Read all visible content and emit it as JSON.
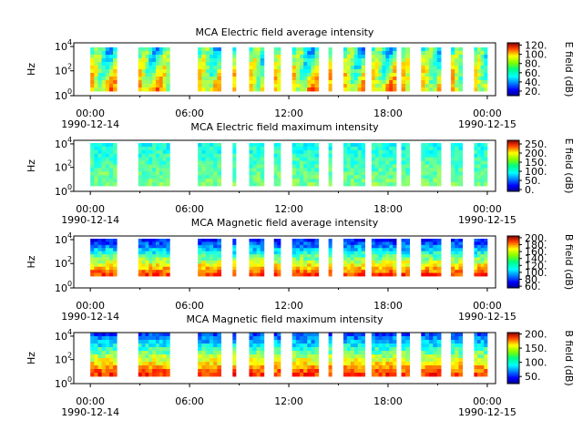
{
  "figure": {
    "instrument": "MCA",
    "x_ticks": [
      "00:00",
      "06:00",
      "12:00",
      "18:00",
      "00:00"
    ],
    "x_tick_hours": [
      0,
      6,
      12,
      18,
      24
    ],
    "date_start": "1990-12-14",
    "date_end": "1990-12-15"
  },
  "chart_data": [
    {
      "type": "heatmap",
      "title": "MCA  Electric field average intensity",
      "ylabel": "Hz",
      "y_scale": "log",
      "yticks": [
        "10",
        "10",
        "10"
      ],
      "ytick_exps": [
        "0",
        "2",
        "4"
      ],
      "colorbar_label": "E field (dB)",
      "colorbar_ticks": [
        "20.",
        "40.",
        "60.",
        "80.",
        "100.",
        "120."
      ],
      "colorbar_range": [
        10,
        125
      ],
      "x_range_hours": [
        -1,
        24.5
      ],
      "data_segments_hours": [
        [
          0.0,
          1.6
        ],
        [
          2.9,
          4.8
        ],
        [
          6.5,
          7.9
        ],
        [
          8.6,
          8.8
        ],
        [
          9.6,
          10.5
        ],
        [
          11.1,
          11.5
        ],
        [
          12.2,
          13.8
        ],
        [
          14.4,
          14.6
        ],
        [
          15.3,
          16.6
        ],
        [
          17.0,
          18.5
        ],
        [
          18.8,
          19.3
        ],
        [
          20.0,
          21.2
        ],
        [
          21.8,
          22.5
        ],
        [
          23.2,
          24.0
        ]
      ],
      "value_range_db": [
        20,
        120
      ]
    },
    {
      "type": "heatmap",
      "title": "MCA  Electric field maximum intensity",
      "ylabel": "Hz",
      "y_scale": "log",
      "yticks": [
        "10",
        "10",
        "10"
      ],
      "ytick_exps": [
        "0",
        "2",
        "4"
      ],
      "colorbar_label": "E field (dB)",
      "colorbar_ticks": [
        "0.",
        "50.",
        "100.",
        "150.",
        "200.",
        "250."
      ],
      "colorbar_range": [
        -10,
        270
      ],
      "x_range_hours": [
        -1,
        24.5
      ],
      "data_segments_hours": [
        [
          0.0,
          1.6
        ],
        [
          2.9,
          4.8
        ],
        [
          6.5,
          7.9
        ],
        [
          8.6,
          8.8
        ],
        [
          9.6,
          10.5
        ],
        [
          11.1,
          11.5
        ],
        [
          12.2,
          13.8
        ],
        [
          14.4,
          14.6
        ],
        [
          15.3,
          16.6
        ],
        [
          17.0,
          18.5
        ],
        [
          18.8,
          19.3
        ],
        [
          20.0,
          21.2
        ],
        [
          21.8,
          22.5
        ],
        [
          23.2,
          24.0
        ]
      ],
      "value_range_db": [
        50,
        250
      ]
    },
    {
      "type": "heatmap",
      "title": "MCA  Magnetic field average intensity",
      "ylabel": "Hz",
      "y_scale": "log",
      "yticks": [
        "10",
        "10",
        "10"
      ],
      "ytick_exps": [
        "0",
        "2",
        "4"
      ],
      "colorbar_label": "B field (dB)",
      "colorbar_ticks": [
        "60.",
        "80.",
        "100.",
        "120.",
        "140.",
        "160.",
        "180.",
        "200."
      ],
      "colorbar_range": [
        55,
        205
      ],
      "x_range_hours": [
        -1,
        24.5
      ],
      "data_segments_hours": [
        [
          0.0,
          1.6
        ],
        [
          2.9,
          4.8
        ],
        [
          6.5,
          7.9
        ],
        [
          8.6,
          8.8
        ],
        [
          9.6,
          10.5
        ],
        [
          11.1,
          11.5
        ],
        [
          12.2,
          13.8
        ],
        [
          14.4,
          14.6
        ],
        [
          15.3,
          16.6
        ],
        [
          17.0,
          18.5
        ],
        [
          18.8,
          19.3
        ],
        [
          20.0,
          21.2
        ],
        [
          21.8,
          22.5
        ],
        [
          23.2,
          24.0
        ]
      ],
      "value_range_db": [
        60,
        200
      ]
    },
    {
      "type": "heatmap",
      "title": "MCA  Magnetic field maximum intensity",
      "ylabel": "Hz",
      "y_scale": "log",
      "yticks": [
        "10",
        "10",
        "10"
      ],
      "ytick_exps": [
        "0",
        "2",
        "4"
      ],
      "colorbar_label": "B field (dB)",
      "colorbar_ticks": [
        "50.",
        "100.",
        "150.",
        "200."
      ],
      "colorbar_range": [
        25,
        205
      ],
      "x_range_hours": [
        -1,
        24.5
      ],
      "data_segments_hours": [
        [
          0.0,
          1.6
        ],
        [
          2.9,
          4.8
        ],
        [
          6.5,
          7.9
        ],
        [
          8.6,
          8.8
        ],
        [
          9.6,
          10.5
        ],
        [
          11.1,
          11.5
        ],
        [
          12.2,
          13.8
        ],
        [
          14.4,
          14.6
        ],
        [
          15.3,
          16.6
        ],
        [
          17.0,
          18.5
        ],
        [
          18.8,
          19.3
        ],
        [
          20.0,
          21.2
        ],
        [
          21.8,
          22.5
        ],
        [
          23.2,
          24.0
        ]
      ],
      "value_range_db": [
        40,
        200
      ]
    }
  ]
}
